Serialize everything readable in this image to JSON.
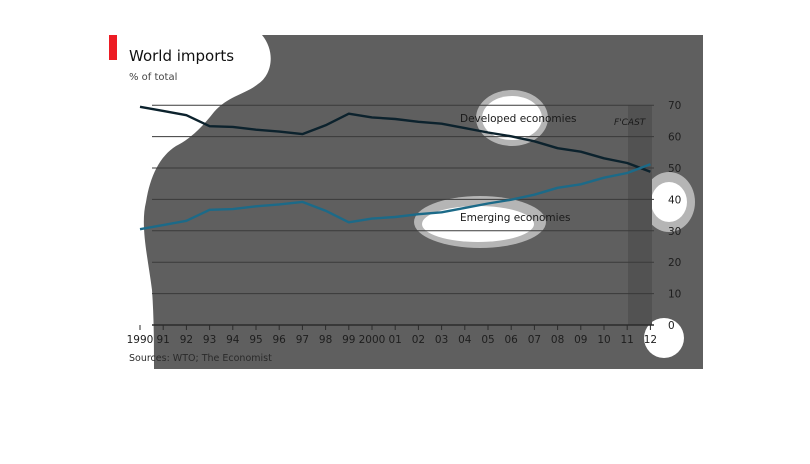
{
  "colors": {
    "overlay": "#5f5f5f",
    "developed": "#0c222d",
    "emerging": "#1c6a88",
    "accent": "#ed1c24",
    "forecast_band": "#525252",
    "grid": "#3a3a3a"
  },
  "chart_data": {
    "type": "line",
    "title": "World imports",
    "subtitle": "% of total",
    "x_tick_labels": [
      "1990",
      "91",
      "92",
      "93",
      "94",
      "95",
      "96",
      "97",
      "98",
      "99",
      "2000",
      "01",
      "02",
      "03",
      "04",
      "05",
      "06",
      "07",
      "08",
      "09",
      "10",
      "11",
      "12"
    ],
    "y_ticks": [
      0,
      10,
      20,
      30,
      40,
      50,
      60,
      70
    ],
    "ylim": [
      0,
      70
    ],
    "y_axis_side": "right",
    "grid": true,
    "forecast_label": "F'CAST",
    "forecast_from_index": 21,
    "series": [
      {
        "name": "Developed economies",
        "color": "#0c222d",
        "values": [
          69.5,
          68.2,
          66.8,
          63.3,
          63.1,
          62.2,
          61.6,
          60.8,
          63.6,
          67.3,
          66.1,
          65.6,
          64.7,
          64.1,
          62.7,
          61.3,
          60.1,
          58.5,
          56.3,
          55.2,
          53.1,
          51.6,
          48.8
        ]
      },
      {
        "name": "Emerging economies",
        "color": "#1c6a88",
        "values": [
          30.5,
          31.8,
          33.2,
          36.7,
          36.9,
          37.8,
          38.4,
          39.2,
          36.4,
          32.7,
          33.9,
          34.4,
          35.3,
          35.9,
          37.3,
          38.7,
          39.9,
          41.5,
          43.7,
          44.8,
          46.9,
          48.4,
          51.2
        ]
      }
    ],
    "source": "Sources: WTO; The Economist"
  }
}
